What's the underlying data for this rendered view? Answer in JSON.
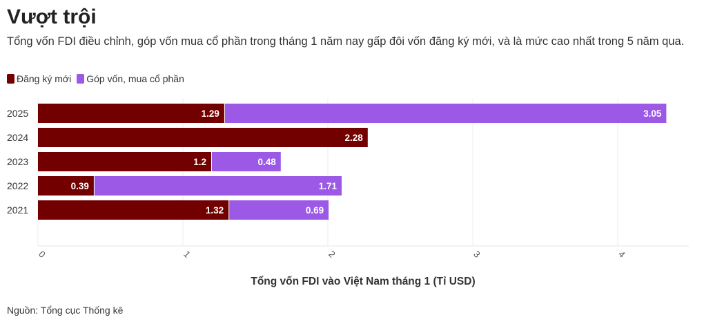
{
  "header": {
    "title": "Vượt trội",
    "subtitle": "Tổng vốn FDI điều chỉnh, góp vốn mua cổ phần trong tháng 1 năm nay gấp đôi vốn đăng ký mới, và là mức cao nhất trong 5 năm qua."
  },
  "footer": {
    "source": "Nguồn: Tổng cục Thống kê"
  },
  "chart_data": {
    "type": "bar",
    "orientation": "horizontal",
    "stacked": true,
    "categories": [
      "2025",
      "2024",
      "2023",
      "2022",
      "2021"
    ],
    "series": [
      {
        "name": "Đăng ký mới",
        "color": "#730000",
        "values": [
          1.29,
          2.28,
          1.2,
          0.39,
          1.32
        ],
        "labels": [
          "1.29",
          "2.28",
          "1.2",
          "0.39",
          "1.32"
        ]
      },
      {
        "name": "Góp vốn, mua cổ phần",
        "color": "#9b59e6",
        "values": [
          3.05,
          null,
          0.48,
          1.71,
          0.69
        ],
        "labels": [
          "3.05",
          "",
          "0.48",
          "1.71",
          "0.69"
        ]
      }
    ],
    "xlabel": "Tổng vốn FDI vào Việt Nam tháng 1 (Tỉ USD)",
    "ylabel": "",
    "xlim": [
      0,
      4.5
    ],
    "xticks": [
      "0",
      "1",
      "2",
      "3",
      "4"
    ],
    "legend_position": "top-left"
  }
}
